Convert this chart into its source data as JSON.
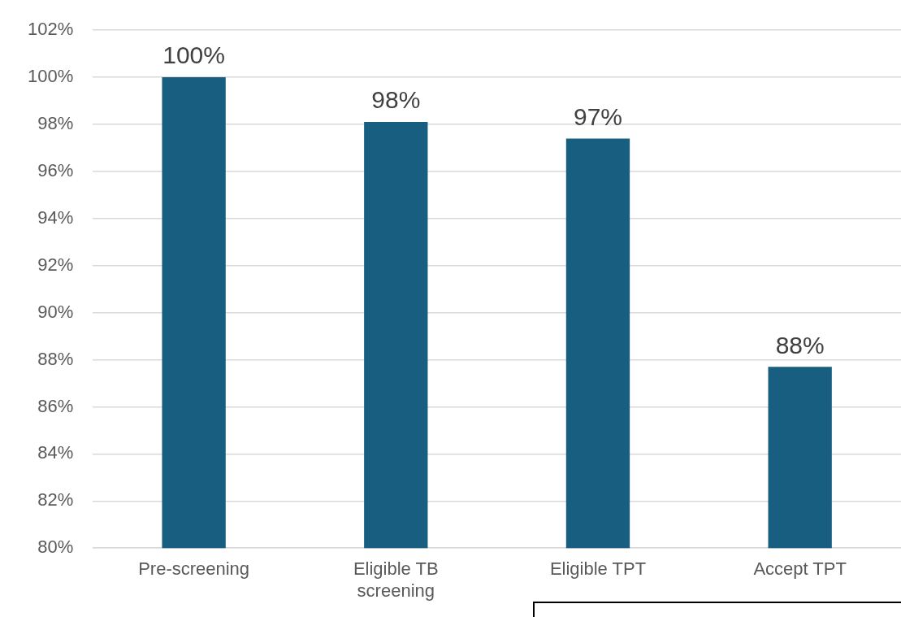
{
  "chart_data": {
    "type": "bar",
    "categories": [
      "Pre-screening",
      "Eligible TB screening",
      "Eligible TPT",
      "Accept TPT"
    ],
    "values": [
      100,
      98.1,
      97.4,
      87.7
    ],
    "value_labels": [
      "100%",
      "98%",
      "97%",
      "88%"
    ],
    "color": "#175e80",
    "ylim": [
      80,
      102
    ],
    "yticks": [
      {
        "value": 80,
        "label": "80%"
      },
      {
        "value": 82,
        "label": "82%"
      },
      {
        "value": 84,
        "label": "84%"
      },
      {
        "value": 86,
        "label": "86%"
      },
      {
        "value": 88,
        "label": "88%"
      },
      {
        "value": 90,
        "label": "90%"
      },
      {
        "value": 92,
        "label": "92%"
      },
      {
        "value": 94,
        "label": "94%"
      },
      {
        "value": 96,
        "label": "96%"
      },
      {
        "value": 98,
        "label": "98%"
      },
      {
        "value": 100,
        "label": "100%"
      },
      {
        "value": 102,
        "label": "102%"
      }
    ],
    "grid": "y",
    "legend": false
  }
}
